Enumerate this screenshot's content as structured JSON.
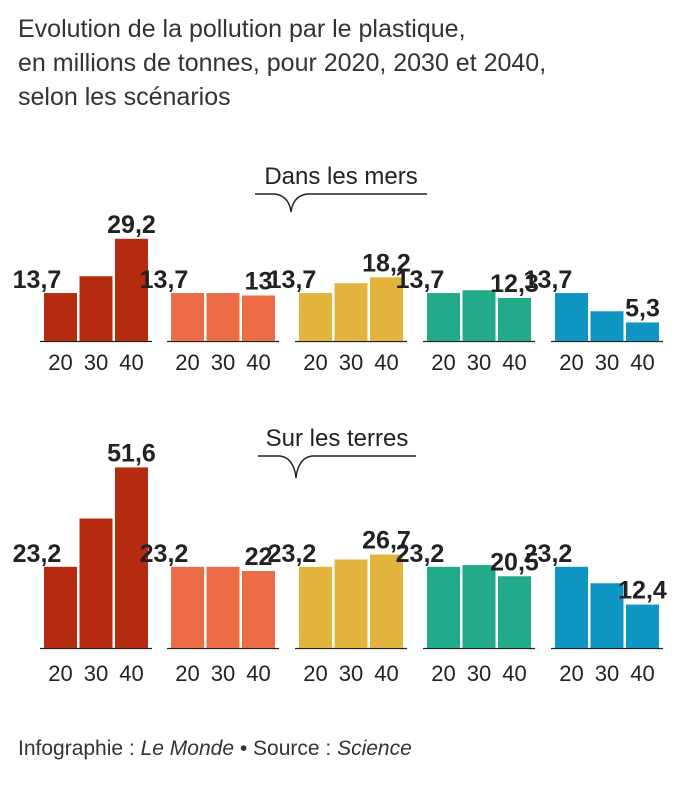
{
  "title_lines": [
    "Evolution de la pollution par le plastique,",
    "en millions de tonnes, pour 2020, 2030 et 2040,",
    "selon les scénarios"
  ],
  "footer": {
    "prefix": "Infographie : ",
    "publisher": "Le Monde",
    "sep": " • Source : ",
    "source": "Science"
  },
  "colors": [
    "#b52b10",
    "#eb6c45",
    "#e3b43c",
    "#22ab8a",
    "#0f95c4"
  ],
  "chart_data": [
    {
      "type": "bar",
      "title": "Dans les mers",
      "categories": [
        "20",
        "30",
        "40"
      ],
      "series": [
        {
          "values": [
            13.7,
            18.5,
            29.2
          ],
          "labels": [
            "13,7",
            "",
            "29,2"
          ]
        },
        {
          "values": [
            13.7,
            13.7,
            13
          ],
          "labels": [
            "13,7",
            "",
            "13"
          ]
        },
        {
          "values": [
            13.7,
            16.5,
            18.2
          ],
          "labels": [
            "13,7",
            "",
            "18,2"
          ]
        },
        {
          "values": [
            13.7,
            14.5,
            12.3
          ],
          "labels": [
            "13,7",
            "",
            "12,3"
          ]
        },
        {
          "values": [
            13.7,
            8.5,
            5.3
          ],
          "labels": [
            "13,7",
            "",
            "5,3"
          ]
        }
      ]
    },
    {
      "type": "bar",
      "title": "Sur les terres",
      "categories": [
        "20",
        "30",
        "40"
      ],
      "series": [
        {
          "values": [
            23.2,
            37,
            51.6
          ],
          "labels": [
            "23,2",
            "",
            "51,6"
          ]
        },
        {
          "values": [
            23.2,
            23.2,
            22
          ],
          "labels": [
            "23,2",
            "",
            "22"
          ]
        },
        {
          "values": [
            23.2,
            25.3,
            26.7
          ],
          "labels": [
            "23,2",
            "",
            "26,7"
          ]
        },
        {
          "values": [
            23.2,
            23.7,
            20.5
          ],
          "labels": [
            "23,2",
            "",
            "20,5"
          ]
        },
        {
          "values": [
            23.2,
            18.5,
            12.4
          ],
          "labels": [
            "23,2",
            "",
            "12,4"
          ]
        }
      ]
    }
  ]
}
